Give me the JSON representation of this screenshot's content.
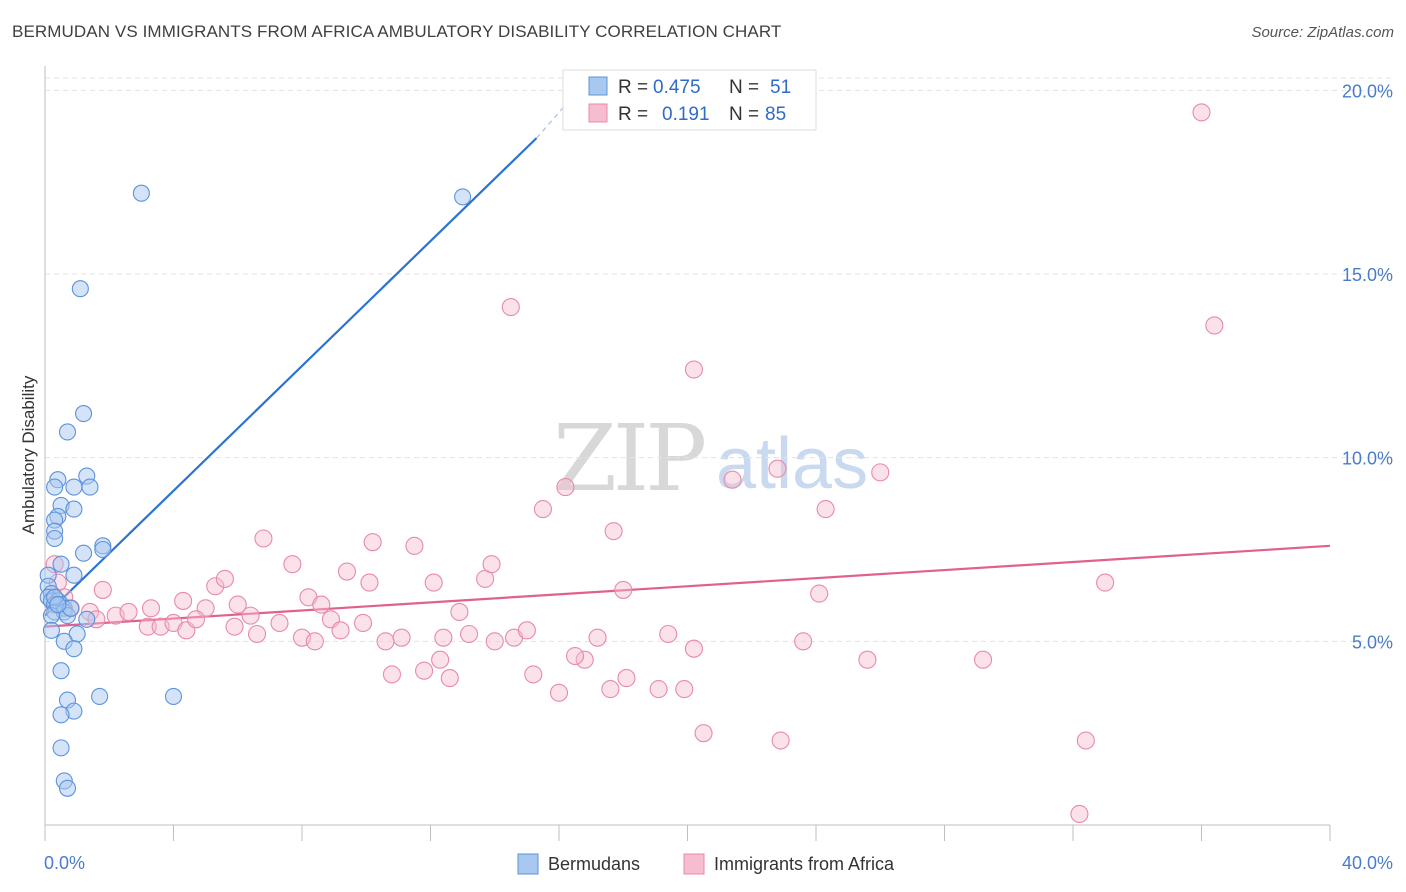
{
  "title": "BERMUDAN VS IMMIGRANTS FROM AFRICA AMBULATORY DISABILITY CORRELATION CHART",
  "source": "Source: ZipAtlas.com",
  "watermark": {
    "part1": "ZIP",
    "part2": "atlas"
  },
  "legend": {
    "r_label": "R =",
    "n_label": "N =",
    "series": [
      {
        "r": "0.475",
        "n": "51"
      },
      {
        "r": "0.191",
        "n": "85"
      }
    ]
  },
  "colors": {
    "blue_fill": "#a9c8f0",
    "blue_stroke": "#5b93dc",
    "blue_line": "#2b73d2",
    "pink_fill": "#f6bcd0",
    "pink_stroke": "#e88aab",
    "pink_line": "#e0608e"
  },
  "chart_data": {
    "type": "scatter",
    "title": "BERMUDAN VS IMMIGRANTS FROM AFRICA AMBULATORY DISABILITY CORRELATION CHART",
    "xlabel": "",
    "ylabel": "Ambulatory Disability",
    "xlim": [
      0,
      40
    ],
    "ylim": [
      0,
      20.5
    ],
    "x_tick_labels": [
      "0.0%",
      "40.0%"
    ],
    "y_ticks": [
      5,
      10,
      15,
      20
    ],
    "y_tick_labels": [
      "5.0%",
      "10.0%",
      "15.0%",
      "20.0%"
    ],
    "grid": true,
    "series": [
      {
        "name": "Bermudans",
        "r": 0.475,
        "n": 51,
        "trend": {
          "x": [
            0.0,
            15.3
          ],
          "y": [
            5.7,
            18.7
          ],
          "dashed_to": [
            16.2,
            19.6
          ]
        },
        "points": [
          [
            3.0,
            17.2
          ],
          [
            13.0,
            17.1
          ],
          [
            1.1,
            14.6
          ],
          [
            1.2,
            11.2
          ],
          [
            0.7,
            10.7
          ],
          [
            1.3,
            9.5
          ],
          [
            0.4,
            9.4
          ],
          [
            0.3,
            9.2
          ],
          [
            1.4,
            9.2
          ],
          [
            0.9,
            9.2
          ],
          [
            0.5,
            8.7
          ],
          [
            0.9,
            8.6
          ],
          [
            0.4,
            8.4
          ],
          [
            0.3,
            8.3
          ],
          [
            0.3,
            8.0
          ],
          [
            0.3,
            7.8
          ],
          [
            1.8,
            7.6
          ],
          [
            1.2,
            7.4
          ],
          [
            1.8,
            7.5
          ],
          [
            0.5,
            7.1
          ],
          [
            0.1,
            6.8
          ],
          [
            0.9,
            6.8
          ],
          [
            0.1,
            6.5
          ],
          [
            0.2,
            6.3
          ],
          [
            0.1,
            6.2
          ],
          [
            0.2,
            6.1
          ],
          [
            0.4,
            6.1
          ],
          [
            0.5,
            6.0
          ],
          [
            0.3,
            6.0
          ],
          [
            0.6,
            5.9
          ],
          [
            0.3,
            5.8
          ],
          [
            0.6,
            5.8
          ],
          [
            0.2,
            5.7
          ],
          [
            0.7,
            5.7
          ],
          [
            1.3,
            5.6
          ],
          [
            0.2,
            5.3
          ],
          [
            1.0,
            5.2
          ],
          [
            0.6,
            5.0
          ],
          [
            0.9,
            4.8
          ],
          [
            0.5,
            4.2
          ],
          [
            1.7,
            3.5
          ],
          [
            0.7,
            3.4
          ],
          [
            4.0,
            3.5
          ],
          [
            0.9,
            3.1
          ],
          [
            0.5,
            3.0
          ],
          [
            0.5,
            2.1
          ],
          [
            0.6,
            1.2
          ],
          [
            0.7,
            1.0
          ],
          [
            0.3,
            6.2
          ],
          [
            0.8,
            5.9
          ],
          [
            0.4,
            6.0
          ]
        ]
      },
      {
        "name": "Immigrants from Africa",
        "r": 0.191,
        "n": 85,
        "trend": {
          "x": [
            0.0,
            40.0
          ],
          "y": [
            5.4,
            7.6
          ]
        },
        "points": [
          [
            36.0,
            19.4
          ],
          [
            14.5,
            14.1
          ],
          [
            36.4,
            13.6
          ],
          [
            20.2,
            12.4
          ],
          [
            0.3,
            7.1
          ],
          [
            0.4,
            6.6
          ],
          [
            0.6,
            6.2
          ],
          [
            1.8,
            6.4
          ],
          [
            0.3,
            6.0
          ],
          [
            0.8,
            5.9
          ],
          [
            1.4,
            5.8
          ],
          [
            2.2,
            5.7
          ],
          [
            2.6,
            5.8
          ],
          [
            1.6,
            5.6
          ],
          [
            3.2,
            5.4
          ],
          [
            3.6,
            5.4
          ],
          [
            3.3,
            5.9
          ],
          [
            4.0,
            5.5
          ],
          [
            4.4,
            5.3
          ],
          [
            4.3,
            6.1
          ],
          [
            5.3,
            6.5
          ],
          [
            5.6,
            6.7
          ],
          [
            5.0,
            5.9
          ],
          [
            4.7,
            5.6
          ],
          [
            6.0,
            6.0
          ],
          [
            5.9,
            5.4
          ],
          [
            6.4,
            5.7
          ],
          [
            6.6,
            5.2
          ],
          [
            6.8,
            7.8
          ],
          [
            7.3,
            5.5
          ],
          [
            7.7,
            7.1
          ],
          [
            8.2,
            6.2
          ],
          [
            8.0,
            5.1
          ],
          [
            8.4,
            5.0
          ],
          [
            8.6,
            6.0
          ],
          [
            8.9,
            5.6
          ],
          [
            9.4,
            6.9
          ],
          [
            9.2,
            5.3
          ],
          [
            9.9,
            5.5
          ],
          [
            10.2,
            7.7
          ],
          [
            10.1,
            6.6
          ],
          [
            10.6,
            5.0
          ],
          [
            10.8,
            4.1
          ],
          [
            11.1,
            5.1
          ],
          [
            11.5,
            7.6
          ],
          [
            11.8,
            4.2
          ],
          [
            12.1,
            6.6
          ],
          [
            12.3,
            4.5
          ],
          [
            12.4,
            5.1
          ],
          [
            12.6,
            4.0
          ],
          [
            12.9,
            5.8
          ],
          [
            13.2,
            5.2
          ],
          [
            13.7,
            6.7
          ],
          [
            13.9,
            7.1
          ],
          [
            14.0,
            5.0
          ],
          [
            14.6,
            5.1
          ],
          [
            15.0,
            5.3
          ],
          [
            15.2,
            4.1
          ],
          [
            15.5,
            8.6
          ],
          [
            16.0,
            3.6
          ],
          [
            16.2,
            9.2
          ],
          [
            16.8,
            4.5
          ],
          [
            17.2,
            5.1
          ],
          [
            16.5,
            4.6
          ],
          [
            17.6,
            3.7
          ],
          [
            17.7,
            8.0
          ],
          [
            18.0,
            6.4
          ],
          [
            18.1,
            4.0
          ],
          [
            19.1,
            3.7
          ],
          [
            19.4,
            5.2
          ],
          [
            19.9,
            3.7
          ],
          [
            20.2,
            4.8
          ],
          [
            20.5,
            2.5
          ],
          [
            21.4,
            9.4
          ],
          [
            22.8,
            9.7
          ],
          [
            22.9,
            2.3
          ],
          [
            23.6,
            5.0
          ],
          [
            24.1,
            6.3
          ],
          [
            24.3,
            8.6
          ],
          [
            25.6,
            4.5
          ],
          [
            26.0,
            9.6
          ],
          [
            29.2,
            4.5
          ],
          [
            32.4,
            2.3
          ],
          [
            33.0,
            6.6
          ],
          [
            32.2,
            0.3
          ]
        ]
      }
    ]
  }
}
